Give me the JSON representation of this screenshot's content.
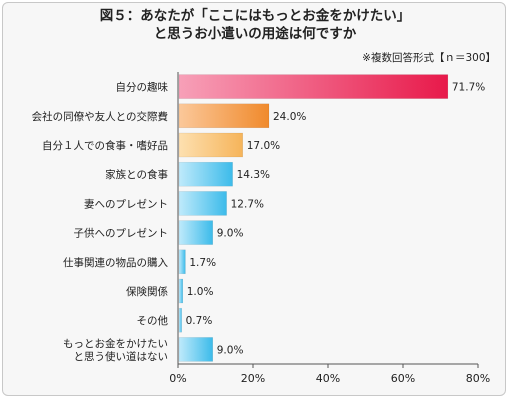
{
  "title_line1": "図５：あなたが「ここにはもっとお金をかけたい」",
  "title_line2": "と思うお小遣いの用途は何ですか",
  "note": "※複数回答形式【ｎ＝300】",
  "chart_data": {
    "type": "bar",
    "orientation": "horizontal",
    "categories": [
      [
        "自分の趣味"
      ],
      [
        "会社の同僚や友人との交際費"
      ],
      [
        "自分１人での食事・嗜好品"
      ],
      [
        "家族との食事"
      ],
      [
        "妻へのプレゼント"
      ],
      [
        "子供へのプレゼント"
      ],
      [
        "仕事関連の物品の購入"
      ],
      [
        "保険関係"
      ],
      [
        "その他"
      ],
      [
        "もっとお金をかけたい",
        "と思う使い道はない"
      ]
    ],
    "values": [
      71.7,
      24.0,
      17.0,
      14.3,
      12.7,
      9.0,
      1.7,
      1.0,
      0.7,
      9.0
    ],
    "value_labels": [
      "71.7%",
      "24.0%",
      "17.0%",
      "14.3%",
      "12.7%",
      "9.0%",
      "1.7%",
      "1.0%",
      "0.7%",
      "9.0%"
    ],
    "xlim": [
      0,
      80
    ],
    "ticks": [
      0,
      20,
      40,
      60,
      80
    ],
    "tick_labels": [
      "0%",
      "20%",
      "40%",
      "60%",
      "80%"
    ],
    "bar_colors": [
      [
        "#f7a0b8",
        "#e8194a"
      ],
      [
        "#fbc89a",
        "#f08a2c"
      ],
      [
        "#fde0b0",
        "#f6b45a"
      ],
      [
        "#bfeafb",
        "#3cbbea"
      ],
      [
        "#bfeafb",
        "#3cbbea"
      ],
      [
        "#bfeafb",
        "#3cbbea"
      ],
      [
        "#bfeafb",
        "#3cbbea"
      ],
      [
        "#bfeafb",
        "#3cbbea"
      ],
      [
        "#bfeafb",
        "#3cbbea"
      ],
      [
        "#bfeafb",
        "#3cbbea"
      ]
    ]
  }
}
